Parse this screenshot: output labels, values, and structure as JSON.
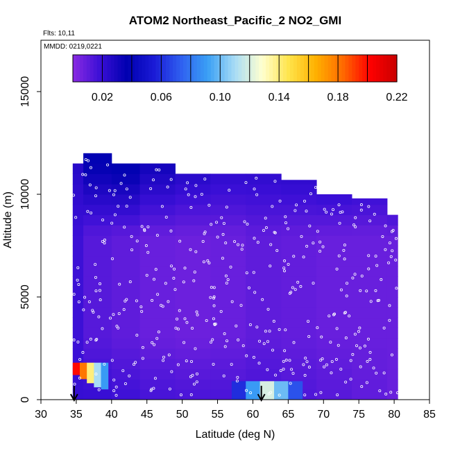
{
  "chart_data": {
    "type": "heatmap",
    "title": "ATOM2 Northeast_Pacific_2 NO2_GMI",
    "flights_note": "Flts: 10,11",
    "date_note": "MMDD: 0219,0221",
    "xlabel": "Latitude (deg N)",
    "ylabel": "Altitude (m)",
    "xlim": [
      30,
      85
    ],
    "ylim": [
      0,
      17500
    ],
    "x_ticks": [
      "30",
      "35",
      "40",
      "45",
      "50",
      "55",
      "60",
      "65",
      "70",
      "75",
      "80",
      "85"
    ],
    "y_ticks": [
      "0",
      "5000",
      "10000",
      "15000"
    ],
    "colorbar": {
      "min": 0.0,
      "max": 0.22,
      "tick_values": [
        0.02,
        0.06,
        0.1,
        0.14,
        0.18,
        0.22
      ],
      "tick_labels": [
        "0.02",
        "0.06",
        "0.10",
        "0.14",
        "0.18",
        "0.22"
      ],
      "colors": [
        "#8a2be2",
        "#3b0fd6",
        "#0000b0",
        "#1a1ad6",
        "#2f5ff0",
        "#3aa0f5",
        "#a8dcf5",
        "#ffffd0",
        "#ffe44a",
        "#ffb000",
        "#ff6a00",
        "#ff0000",
        "#c80000"
      ]
    },
    "columns": [
      {
        "x0": 34.5,
        "x1": 36.0,
        "top": 11500,
        "near": 0.02,
        "mid": 0.018,
        "up": 0.025
      },
      {
        "x0": 36.0,
        "x1": 40.0,
        "top": 12000,
        "near": 0.02,
        "mid": 0.012,
        "up": 0.04
      },
      {
        "x0": 40.0,
        "x1": 44.0,
        "top": 11500,
        "near": 0.018,
        "mid": 0.01,
        "up": 0.04
      },
      {
        "x0": 44.0,
        "x1": 49.0,
        "top": 11500,
        "near": 0.016,
        "mid": 0.008,
        "up": 0.032
      },
      {
        "x0": 49.0,
        "x1": 54.0,
        "top": 11000,
        "near": 0.015,
        "mid": 0.007,
        "up": 0.025
      },
      {
        "x0": 54.0,
        "x1": 59.0,
        "top": 11000,
        "near": 0.015,
        "mid": 0.008,
        "up": 0.022
      },
      {
        "x0": 59.0,
        "x1": 64.0,
        "top": 11000,
        "near": 0.016,
        "mid": 0.01,
        "up": 0.022
      },
      {
        "x0": 64.0,
        "x1": 69.0,
        "top": 10700,
        "near": 0.014,
        "mid": 0.009,
        "up": 0.022
      },
      {
        "x0": 69.0,
        "x1": 74.0,
        "top": 10000,
        "near": 0.012,
        "mid": 0.008,
        "up": 0.02
      },
      {
        "x0": 74.0,
        "x1": 79.0,
        "top": 9800,
        "near": 0.01,
        "mid": 0.008,
        "up": 0.018
      },
      {
        "x0": 79.0,
        "x1": 80.5,
        "top": 9000,
        "near": 0.008,
        "mid": 0.008,
        "up": 0.016
      }
    ],
    "surface_features": [
      {
        "x0": 34.5,
        "x1": 35.5,
        "alt0": 1200,
        "alt1": 1800,
        "value": 0.2
      },
      {
        "x0": 35.5,
        "x1": 36.5,
        "alt0": 1000,
        "alt1": 1800,
        "value": 0.18
      },
      {
        "x0": 36.5,
        "x1": 37.5,
        "alt0": 800,
        "alt1": 1800,
        "value": 0.14
      },
      {
        "x0": 37.5,
        "x1": 38.5,
        "alt0": 600,
        "alt1": 1800,
        "value": 0.11
      },
      {
        "x0": 38.5,
        "x1": 39.5,
        "alt0": 500,
        "alt1": 1800,
        "value": 0.09
      },
      {
        "x0": 57.0,
        "x1": 59.0,
        "alt0": 0,
        "alt1": 900,
        "value": 0.06
      },
      {
        "x0": 59.0,
        "x1": 61.0,
        "alt0": 0,
        "alt1": 900,
        "value": 0.09
      },
      {
        "x0": 61.0,
        "x1": 63.0,
        "alt0": 0,
        "alt1": 900,
        "value": 0.12
      },
      {
        "x0": 63.0,
        "x1": 65.0,
        "alt0": 0,
        "alt1": 900,
        "value": 0.1
      },
      {
        "x0": 65.0,
        "x1": 67.0,
        "alt0": 0,
        "alt1": 900,
        "value": 0.07
      }
    ],
    "markers": [
      {
        "latitude": 34.7,
        "label": "arrow"
      },
      {
        "latitude": 61.2,
        "label": "arrow"
      }
    ]
  }
}
